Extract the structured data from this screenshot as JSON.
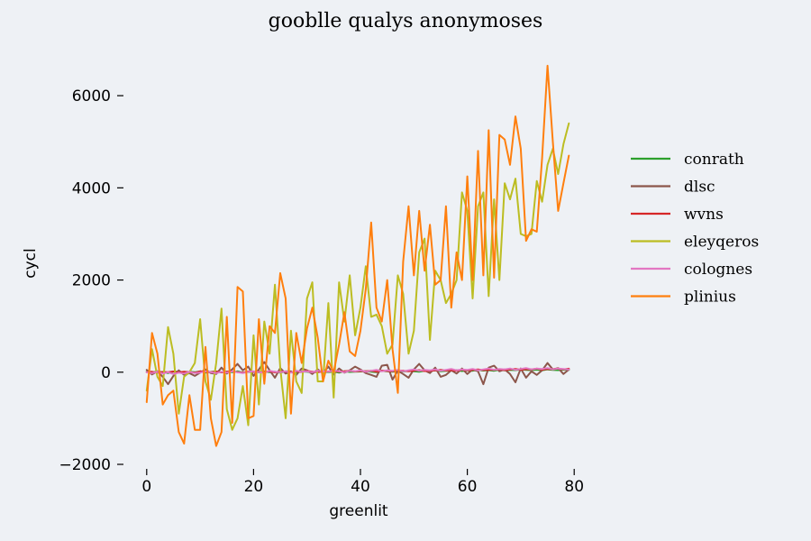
{
  "chart_data": {
    "type": "line",
    "title": "gooblle qualys anonymoses",
    "xlabel": "greenlit",
    "ylabel": "cycl",
    "xlim": [
      -3,
      83
    ],
    "ylim": [
      -2000,
      7000
    ],
    "xticks": [
      0,
      20,
      40,
      60,
      80
    ],
    "yticks": [
      -2000,
      0,
      2000,
      4000,
      6000
    ],
    "ytick_labels": [
      "−2000",
      "0",
      "2000",
      "4000",
      "6000"
    ],
    "grid": false,
    "legend_position": "right",
    "x": [
      0,
      1,
      2,
      3,
      4,
      5,
      6,
      7,
      8,
      9,
      10,
      11,
      12,
      13,
      14,
      15,
      16,
      17,
      18,
      19,
      20,
      21,
      22,
      23,
      24,
      25,
      26,
      27,
      28,
      29,
      30,
      31,
      32,
      33,
      34,
      35,
      36,
      37,
      38,
      39,
      40,
      41,
      42,
      43,
      44,
      45,
      46,
      47,
      48,
      49,
      50,
      51,
      52,
      53,
      54,
      55,
      56,
      57,
      58,
      59,
      60,
      61,
      62,
      63,
      64,
      65,
      66,
      67,
      68,
      69,
      70,
      71,
      72,
      73,
      74,
      75,
      76,
      77,
      78,
      79
    ],
    "series": [
      {
        "name": "conrath",
        "color": "#2ca02c",
        "values": [
          10,
          -10,
          20,
          0,
          -20,
          15,
          5,
          -15,
          10,
          0,
          20,
          -10,
          5,
          15,
          -5,
          10,
          0,
          20,
          -10,
          5,
          10,
          -5,
          15,
          0,
          10,
          -10,
          20,
          5,
          0,
          15,
          10,
          -5,
          20,
          10,
          0,
          15,
          -10,
          20,
          5,
          10,
          15,
          20,
          10,
          0,
          30,
          20,
          10,
          25,
          15,
          30,
          20,
          10,
          30,
          25,
          40,
          20,
          30,
          35,
          45,
          25,
          40,
          30,
          50,
          35,
          45,
          30,
          55,
          40,
          50,
          45,
          60,
          50,
          45,
          55,
          40,
          60,
          50,
          45,
          55,
          50
        ]
      },
      {
        "name": "dlsc",
        "color": "#8c564b",
        "values": [
          50,
          -50,
          20,
          -100,
          -260,
          -80,
          40,
          -60,
          -20,
          -80,
          -10,
          60,
          -20,
          -40,
          100,
          -30,
          60,
          180,
          40,
          120,
          -80,
          60,
          220,
          40,
          -120,
          90,
          -30,
          20,
          -60,
          80,
          40,
          -40,
          60,
          -20,
          120,
          -50,
          80,
          -10,
          40,
          120,
          60,
          -20,
          -60,
          -100,
          140,
          160,
          -160,
          30,
          -40,
          -120,
          60,
          180,
          40,
          -20,
          100,
          -100,
          -60,
          40,
          -30,
          80,
          -40,
          60,
          20,
          -260,
          100,
          140,
          20,
          60,
          -40,
          -220,
          80,
          -120,
          20,
          -60,
          40,
          200,
          60,
          90,
          -40,
          60
        ]
      },
      {
        "name": "wvns",
        "color": "#d62728",
        "values": [
          0,
          10,
          -10,
          5,
          0,
          15,
          -5,
          10,
          0,
          -10,
          20,
          5,
          0,
          15,
          -5,
          10,
          20,
          0,
          -10,
          15,
          5,
          10,
          0,
          20,
          -5,
          15,
          10,
          0,
          20,
          5,
          30,
          10,
          0,
          20,
          15,
          25,
          10,
          20,
          30,
          15,
          25,
          20,
          30,
          10,
          35,
          25,
          20,
          40,
          30,
          20,
          35,
          45,
          25,
          30,
          40,
          50,
          35,
          45,
          30,
          55,
          40,
          50,
          60,
          45,
          55,
          50,
          65,
          45,
          60,
          70,
          55,
          65,
          60,
          75,
          55,
          70,
          65,
          80,
          60,
          75
        ]
      },
      {
        "name": "eleyqeros",
        "color": "#bcbd22",
        "values": [
          -400,
          500,
          -100,
          -300,
          980,
          400,
          -900,
          -100,
          0,
          200,
          1150,
          -200,
          -600,
          200,
          1380,
          -800,
          -1250,
          -1000,
          -300,
          -1150,
          800,
          -700,
          1100,
          400,
          1900,
          100,
          -1000,
          900,
          -200,
          -450,
          1600,
          1950,
          -200,
          -200,
          1500,
          -550,
          1950,
          1100,
          2100,
          800,
          1400,
          2300,
          1200,
          1250,
          1000,
          400,
          600,
          2100,
          1700,
          400,
          900,
          2600,
          2900,
          700,
          2200,
          2000,
          1500,
          1700,
          2000,
          3900,
          3500,
          1600,
          3600,
          3900,
          1650,
          3750,
          2000,
          4100,
          3750,
          4200,
          3000,
          2950,
          3000,
          4150,
          3700,
          4500,
          4850,
          4300,
          4950,
          5400
        ]
      },
      {
        "name": "colognes",
        "color": "#e377c2",
        "values": [
          0,
          -20,
          10,
          -30,
          0,
          -40,
          -10,
          -30,
          10,
          -20,
          -10,
          20,
          0,
          -20,
          10,
          -10,
          20,
          0,
          -20,
          10,
          20,
          0,
          -10,
          30,
          10,
          0,
          20,
          -10,
          30,
          10,
          20,
          0,
          30,
          20,
          10,
          40,
          20,
          0,
          30,
          20,
          40,
          10,
          30,
          50,
          20,
          40,
          30,
          50,
          20,
          40,
          60,
          30,
          50,
          40,
          60,
          30,
          50,
          70,
          40,
          60,
          50,
          70,
          40,
          60,
          80,
          50,
          70,
          60,
          80,
          50,
          70,
          90,
          60,
          80,
          70,
          90,
          60,
          80,
          70,
          60
        ]
      },
      {
        "name": "plinius",
        "color": "#ff7f0e",
        "values": [
          -650,
          850,
          400,
          -700,
          -500,
          -400,
          -1300,
          -1550,
          -500,
          -1250,
          -1250,
          550,
          -1000,
          -1600,
          -1300,
          1200,
          -1100,
          1850,
          1750,
          -1000,
          -950,
          1150,
          -250,
          1000,
          850,
          2150,
          1600,
          -900,
          850,
          200,
          950,
          1400,
          750,
          -200,
          250,
          0,
          600,
          1300,
          450,
          350,
          900,
          1800,
          3250,
          1400,
          1100,
          2000,
          500,
          -450,
          2400,
          3600,
          2100,
          3500,
          2200,
          3200,
          1900,
          2000,
          3600,
          1400,
          2600,
          2000,
          4250,
          2000,
          4800,
          2100,
          5250,
          2050,
          5150,
          5050,
          4500,
          5550,
          4850,
          2850,
          3100,
          3050,
          4650,
          6650,
          5000,
          3500,
          4100,
          4700
        ]
      }
    ]
  }
}
